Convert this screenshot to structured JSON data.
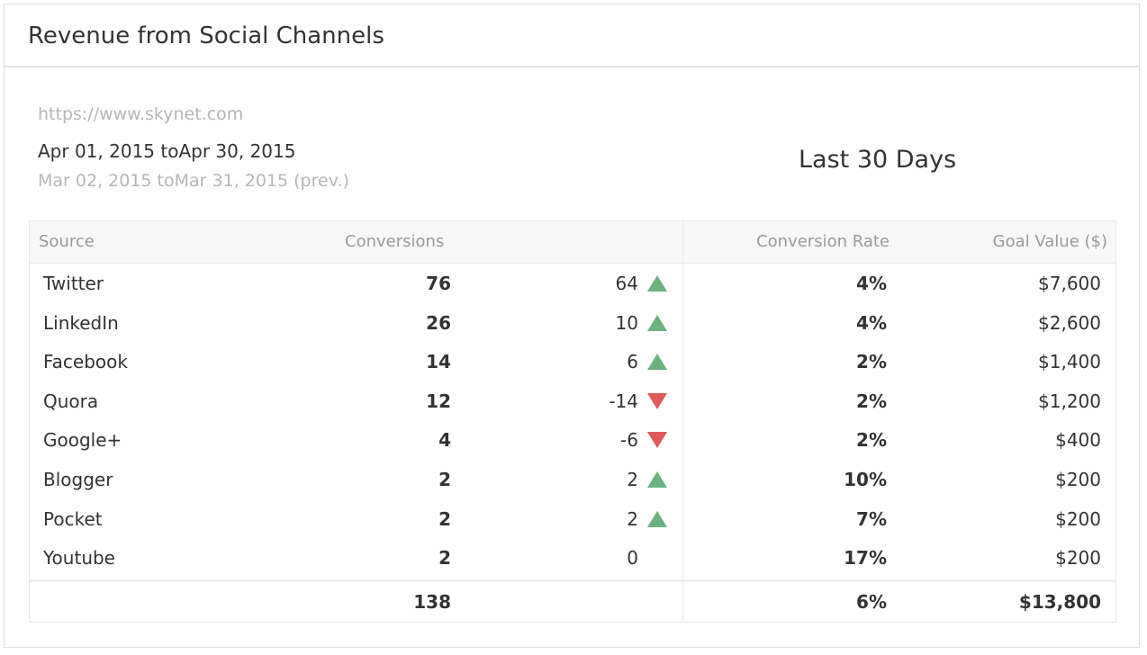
{
  "header": {
    "title": "Revenue from Social Channels"
  },
  "site": "https://www.skynet.com",
  "period": {
    "current": "Apr 01, 2015 toApr 30, 2015",
    "previous": "Mar 02, 2015 toMar 31, 2015 (prev.)",
    "label": "Last 30 Days"
  },
  "table": {
    "columns": [
      "Source",
      "Conversions",
      "Conversion Rate",
      "Goal Value ($)"
    ],
    "rows": [
      [
        "Twitter",
        76,
        64,
        "4%",
        "$7,600"
      ],
      [
        "LinkedIn",
        26,
        10,
        "4%",
        "$2,600"
      ],
      [
        "Facebook",
        14,
        6,
        "2%",
        "$1,400"
      ],
      [
        "Quora",
        12,
        -14,
        "2%",
        "$1,200"
      ],
      [
        "Google+",
        4,
        -6,
        "2%",
        "$400"
      ],
      [
        "Blogger",
        2,
        2,
        "10%",
        "$200"
      ],
      [
        "Pocket",
        2,
        2,
        "7%",
        "$200"
      ],
      [
        "Youtube",
        2,
        0,
        "17%",
        "$200"
      ]
    ],
    "totals": [
      138,
      "6%",
      "$13,800"
    ]
  }
}
